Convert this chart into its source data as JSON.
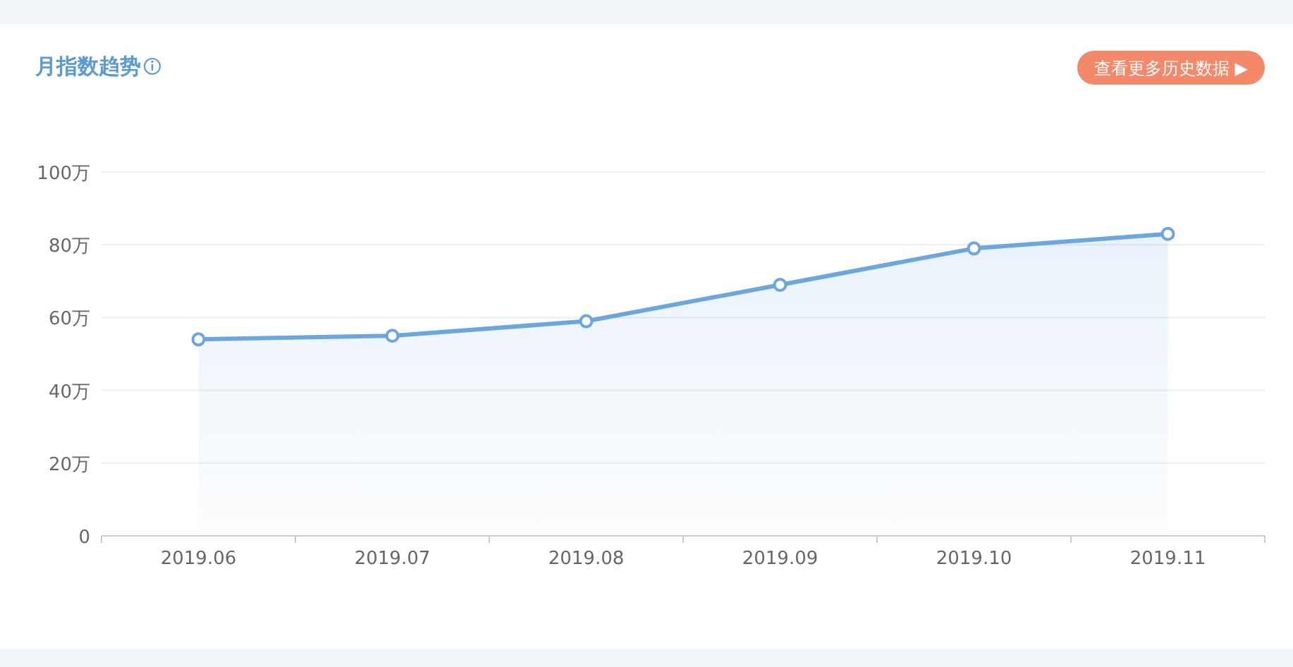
{
  "chart_data": {
    "type": "area",
    "title": "月指数趋势",
    "annotations": [
      "查看更多历史数据 ▶"
    ],
    "categories": [
      "2019.06",
      "2019.07",
      "2019.08",
      "2019.09",
      "2019.10",
      "2019.11"
    ],
    "series": [
      {
        "color": "#6aa6e0",
        "values": [
          54,
          55,
          59,
          69,
          79,
          83
        ]
      }
    ],
    "ylim": [
      0,
      100
    ],
    "yticks": [
      0,
      {
        "value": 20,
        "label": "20万"
      },
      {
        "value": 40,
        "label": "40万"
      },
      {
        "value": 60,
        "label": "60万"
      },
      {
        "value": 80,
        "label": "80万"
      },
      {
        "value": 100,
        "label": "100万"
      }
    ],
    "grid": "y",
    "marker": "circle"
  }
}
